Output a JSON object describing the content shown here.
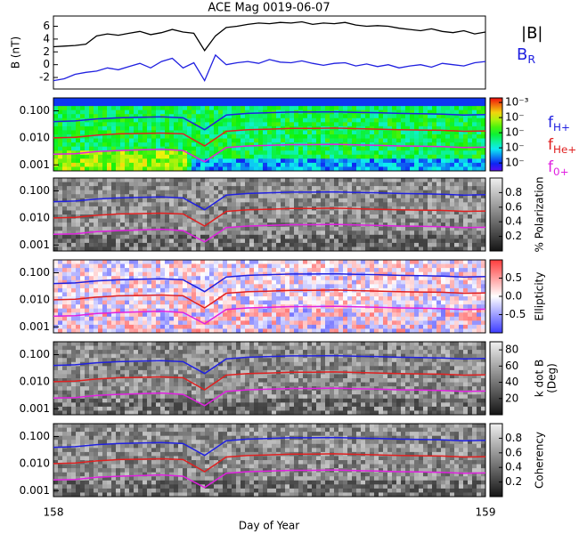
{
  "chart_data": [
    {
      "type": "line",
      "title": "ACE Mag 0019-06-07",
      "ylabel": "B (nT)",
      "xlim": [
        158,
        159
      ],
      "ylim": [
        -3.8,
        7.6
      ],
      "yticks": [
        -2,
        0,
        2,
        4,
        6
      ],
      "x": [
        158,
        158.025,
        158.05,
        158.075,
        158.1,
        158.125,
        158.15,
        158.175,
        158.2,
        158.225,
        158.25,
        158.275,
        158.3,
        158.325,
        158.35,
        158.375,
        158.4,
        158.425,
        158.45,
        158.475,
        158.5,
        158.525,
        158.55,
        158.575,
        158.6,
        158.625,
        158.65,
        158.675,
        158.7,
        158.725,
        158.75,
        158.775,
        158.8,
        158.825,
        158.85,
        158.875,
        158.9,
        158.925,
        158.95,
        158.975,
        159
      ],
      "series": [
        {
          "name": "|B|",
          "color": "#000000",
          "values": [
            2.8,
            2.9,
            3.0,
            3.2,
            4.5,
            4.8,
            4.6,
            4.9,
            5.2,
            4.7,
            5.0,
            5.5,
            5.1,
            4.9,
            2.2,
            4.5,
            5.8,
            6.0,
            6.3,
            6.5,
            6.4,
            6.6,
            6.5,
            6.7,
            6.3,
            6.5,
            6.4,
            6.6,
            6.2,
            6.0,
            6.1,
            6.0,
            5.7,
            5.5,
            5.3,
            5.6,
            5.2,
            5.0,
            5.3,
            4.8,
            5.1
          ]
        },
        {
          "name": "B",
          "subscript": "R",
          "color": "#2020e0",
          "values": [
            -2.5,
            -2.2,
            -1.5,
            -1.2,
            -1.0,
            -0.5,
            -0.8,
            -0.3,
            0.2,
            -0.5,
            0.5,
            1.0,
            -0.5,
            0.3,
            -2.5,
            1.5,
            0.0,
            0.3,
            0.5,
            0.2,
            0.8,
            0.4,
            0.3,
            0.6,
            0.2,
            -0.1,
            0.2,
            0.3,
            -0.2,
            0.1,
            -0.3,
            0.0,
            -0.5,
            -0.2,
            0.0,
            -0.4,
            0.2,
            0.0,
            -0.2,
            0.3,
            0.5
          ]
        }
      ]
    },
    {
      "type": "spectrogram",
      "xlabel": "Day of Year",
      "log_y": true,
      "xlim": [
        158,
        159
      ],
      "xticks": [
        158,
        159
      ],
      "ylim": [
        0.0006,
        0.3
      ],
      "yticks": [
        {
          "value": 0.001,
          "label": "0.001"
        },
        {
          "value": 0.01,
          "label": "0.010"
        },
        {
          "value": 0.1,
          "label": "0.100"
        }
      ],
      "x": [
        158,
        158.05,
        158.1,
        158.15,
        158.2,
        158.25,
        158.3,
        158.35,
        158.4,
        158.45,
        158.5,
        158.55,
        158.6,
        158.65,
        158.7,
        158.75,
        158.8,
        158.85,
        158.9,
        158.95,
        159
      ],
      "series": [
        {
          "name": "f",
          "subscript": "H+",
          "color": "#2020e0",
          "values": [
            0.04,
            0.042,
            0.05,
            0.055,
            0.058,
            0.06,
            0.055,
            0.02,
            0.07,
            0.08,
            0.085,
            0.09,
            0.09,
            0.092,
            0.088,
            0.085,
            0.08,
            0.078,
            0.075,
            0.07,
            0.072
          ]
        },
        {
          "name": "f",
          "subscript": "He+",
          "color": "#e02020",
          "values": [
            0.01,
            0.0105,
            0.0125,
            0.014,
            0.0145,
            0.015,
            0.014,
            0.005,
            0.0175,
            0.02,
            0.021,
            0.0225,
            0.0225,
            0.023,
            0.022,
            0.021,
            0.02,
            0.0195,
            0.019,
            0.0175,
            0.018
          ]
        },
        {
          "name": "f",
          "subscript": "0+",
          "color": "#e020e0",
          "values": [
            0.0025,
            0.0026,
            0.0031,
            0.0034,
            0.0036,
            0.0038,
            0.0034,
            0.0013,
            0.0044,
            0.005,
            0.0053,
            0.0056,
            0.0056,
            0.0058,
            0.0055,
            0.0053,
            0.005,
            0.0049,
            0.0047,
            0.0044,
            0.0045
          ]
        }
      ],
      "panels": [
        {
          "colormap": "rainbow",
          "log_scale": true,
          "clim": [
            3e-08,
            0.002
          ],
          "cticks": [
            {
              "value": 0.001,
              "label": "10⁻³"
            },
            {
              "value": 0.0001,
              "label": "10⁻"
            },
            {
              "value": 1e-05,
              "label": "10⁻"
            },
            {
              "value": 1e-06,
              "label": "10⁻"
            },
            {
              "value": 1e-07,
              "label": "10⁻"
            }
          ]
        },
        {
          "colormap": "gray",
          "label": "% Polarization",
          "clim": [
            0,
            1
          ],
          "cticks": [
            0.2,
            0.4,
            0.6,
            0.8
          ]
        },
        {
          "colormap": "bwr",
          "label": "Ellipticity",
          "clim": [
            -1,
            1
          ],
          "cticks": [
            -0.5,
            {
              "value": 0,
              "label": "0.0"
            },
            0.5
          ]
        },
        {
          "colormap": "gray",
          "label": "k dot B",
          "label2": "(Deg)",
          "clim": [
            0,
            90
          ],
          "cticks": [
            20,
            40,
            60,
            80
          ]
        },
        {
          "colormap": "gray",
          "label": "Coherency",
          "clim": [
            0,
            1
          ],
          "cticks": [
            0.2,
            0.4,
            0.6,
            0.8
          ]
        }
      ]
    }
  ]
}
